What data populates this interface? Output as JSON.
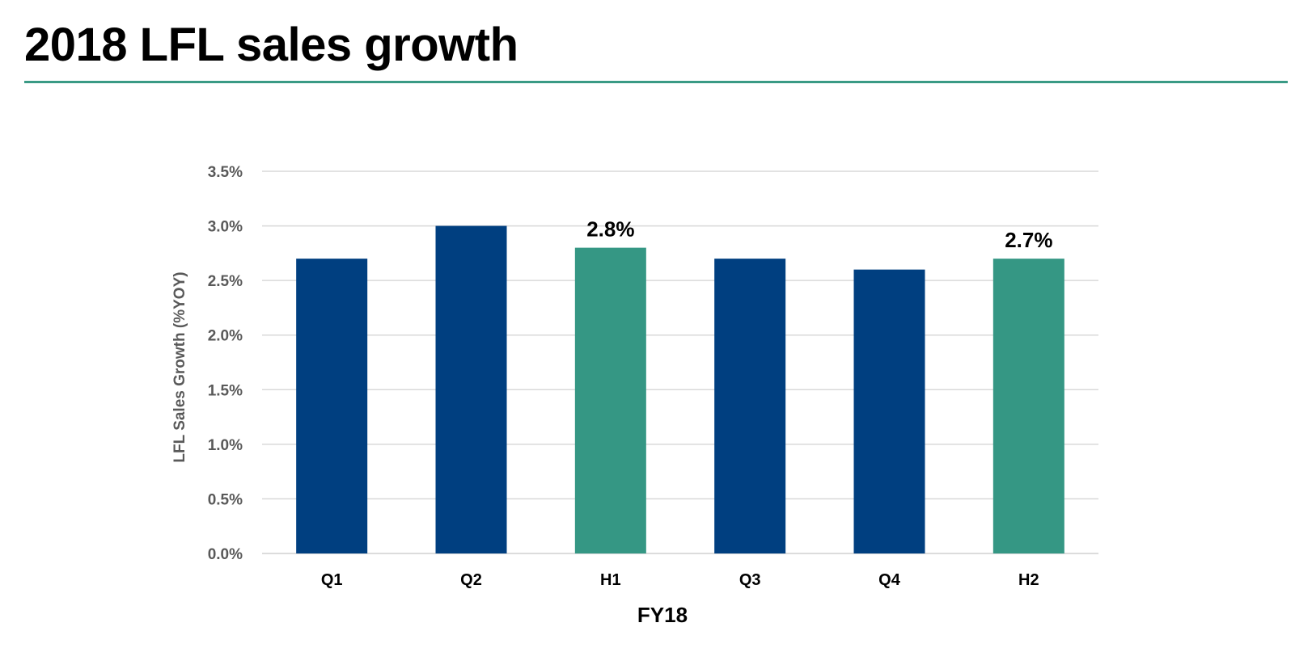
{
  "slide": {
    "title": "2018 LFL sales growth",
    "accent_color": "#3a9a85"
  },
  "chart_data": {
    "type": "bar",
    "title": "",
    "xlabel": "FY18",
    "ylabel": "LFL Sales Growth (%YOY)",
    "categories": [
      "Q1",
      "Q2",
      "H1",
      "Q3",
      "Q4",
      "H2"
    ],
    "values": [
      2.7,
      3.0,
      2.8,
      2.7,
      2.6,
      2.7
    ],
    "value_unit": "%",
    "bar_colors": [
      "#003f80",
      "#003f80",
      "#359784",
      "#003f80",
      "#003f80",
      "#359784"
    ],
    "data_labels": [
      "",
      "",
      "2.8%",
      "",
      "",
      "2.7%"
    ],
    "ylim": [
      0,
      3.5
    ],
    "yticks": [
      0.0,
      0.5,
      1.0,
      1.5,
      2.0,
      2.5,
      3.0,
      3.5
    ],
    "ytick_labels": [
      "0.0%",
      "0.5%",
      "1.0%",
      "1.5%",
      "2.0%",
      "2.5%",
      "3.0%",
      "3.5%"
    ],
    "grid": true,
    "legend": "none"
  }
}
